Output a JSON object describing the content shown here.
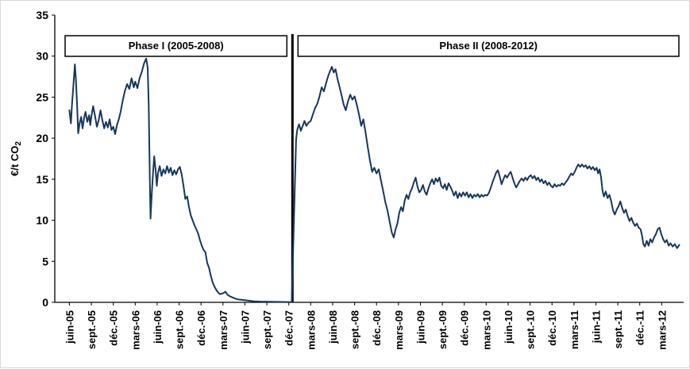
{
  "chart_data": {
    "type": "line",
    "title": "",
    "ylabel_main": "€/t CO",
    "ylabel_sub": "2",
    "ylim": [
      0,
      35
    ],
    "yticks": [
      0,
      5,
      10,
      15,
      20,
      25,
      30,
      35
    ],
    "xlim": [
      -2,
      84
    ],
    "xtick_start_month": 0,
    "xtick_step_months": 3,
    "xtick_labels": [
      "juin-05",
      "sept.-05",
      "déc.-05",
      "mars-06",
      "juin-06",
      "sept.-06",
      "déc.-06",
      "mars-07",
      "juin-07",
      "sept.-07",
      "déc.-07",
      "mars-08",
      "juin-08",
      "sept.-08",
      "déc.-08",
      "mars-09",
      "juin-09",
      "sept.-09",
      "déc.-09",
      "mars-10",
      "juin-10",
      "sept.-10",
      "déc.-10",
      "mars-11",
      "juin-11",
      "sept.-11",
      "déc.-11",
      "mars-12"
    ],
    "grid": false,
    "legend": "none",
    "phase_divider_month": 30.5,
    "annotations": [
      {
        "label": "Phase I (2005-2008)"
      },
      {
        "label": "Phase II (2008-2012)"
      }
    ],
    "series": [
      {
        "name": "",
        "color": "#17375e",
        "points": [
          [
            0.0,
            23.4
          ],
          [
            0.2,
            21.8
          ],
          [
            0.35,
            24.0
          ],
          [
            0.55,
            26.5
          ],
          [
            0.75,
            29.0
          ],
          [
            0.9,
            27.0
          ],
          [
            1.05,
            24.0
          ],
          [
            1.2,
            20.6
          ],
          [
            1.4,
            21.8
          ],
          [
            1.6,
            22.6
          ],
          [
            1.8,
            21.2
          ],
          [
            2.0,
            22.4
          ],
          [
            2.2,
            23.2
          ],
          [
            2.45,
            22.0
          ],
          [
            2.7,
            22.8
          ],
          [
            2.85,
            21.6
          ],
          [
            3.0,
            22.6
          ],
          [
            3.25,
            23.9
          ],
          [
            3.5,
            22.7
          ],
          [
            3.75,
            21.4
          ],
          [
            4.0,
            22.2
          ],
          [
            4.25,
            23.4
          ],
          [
            4.5,
            22.2
          ],
          [
            4.75,
            21.2
          ],
          [
            5.0,
            22.0
          ],
          [
            5.25,
            21.3
          ],
          [
            5.5,
            22.3
          ],
          [
            5.75,
            21.0
          ],
          [
            6.0,
            21.4
          ],
          [
            6.25,
            20.5
          ],
          [
            6.5,
            21.6
          ],
          [
            6.75,
            22.3
          ],
          [
            7.0,
            23.2
          ],
          [
            7.3,
            24.6
          ],
          [
            7.6,
            25.8
          ],
          [
            7.9,
            26.6
          ],
          [
            8.2,
            26.0
          ],
          [
            8.5,
            27.3
          ],
          [
            8.8,
            26.2
          ],
          [
            9.0,
            26.9
          ],
          [
            9.3,
            26.1
          ],
          [
            9.6,
            27.3
          ],
          [
            9.9,
            28.1
          ],
          [
            10.2,
            29.1
          ],
          [
            10.5,
            29.7
          ],
          [
            10.7,
            28.6
          ],
          [
            10.85,
            24.0
          ],
          [
            11.0,
            15.0
          ],
          [
            11.1,
            10.2
          ],
          [
            11.25,
            13.0
          ],
          [
            11.45,
            16.0
          ],
          [
            11.6,
            17.8
          ],
          [
            11.8,
            16.0
          ],
          [
            11.95,
            14.2
          ],
          [
            12.1,
            15.7
          ],
          [
            12.35,
            16.6
          ],
          [
            12.6,
            15.4
          ],
          [
            12.85,
            16.2
          ],
          [
            13.1,
            15.7
          ],
          [
            13.35,
            16.6
          ],
          [
            13.6,
            15.8
          ],
          [
            13.85,
            16.4
          ],
          [
            14.1,
            15.5
          ],
          [
            14.35,
            16.1
          ],
          [
            14.6,
            15.6
          ],
          [
            14.85,
            16.2
          ],
          [
            15.1,
            16.5
          ],
          [
            15.35,
            15.6
          ],
          [
            15.6,
            14.2
          ],
          [
            15.85,
            12.6
          ],
          [
            16.1,
            12.9
          ],
          [
            16.35,
            11.6
          ],
          [
            16.6,
            10.6
          ],
          [
            16.85,
            10.0
          ],
          [
            17.1,
            9.4
          ],
          [
            17.35,
            8.9
          ],
          [
            17.6,
            8.4
          ],
          [
            17.85,
            7.6
          ],
          [
            18.1,
            6.9
          ],
          [
            18.35,
            6.4
          ],
          [
            18.6,
            6.1
          ],
          [
            18.85,
            4.8
          ],
          [
            19.1,
            4.2
          ],
          [
            19.35,
            3.2
          ],
          [
            19.6,
            2.4
          ],
          [
            19.85,
            1.9
          ],
          [
            20.1,
            1.5
          ],
          [
            20.35,
            1.2
          ],
          [
            20.6,
            1.0
          ],
          [
            20.85,
            1.05
          ],
          [
            21.1,
            1.15
          ],
          [
            21.35,
            1.3
          ],
          [
            21.6,
            0.95
          ],
          [
            21.9,
            0.75
          ],
          [
            22.3,
            0.6
          ],
          [
            22.7,
            0.45
          ],
          [
            23.1,
            0.35
          ],
          [
            23.6,
            0.3
          ],
          [
            24.1,
            0.25
          ],
          [
            24.7,
            0.18
          ],
          [
            25.3,
            0.13
          ],
          [
            26.0,
            0.1
          ],
          [
            26.7,
            0.09
          ],
          [
            27.4,
            0.07
          ],
          [
            28.2,
            0.06
          ],
          [
            29.0,
            0.05
          ],
          [
            29.8,
            0.04
          ],
          [
            30.4,
            0.03
          ],
          [
            31.0,
            19.8
          ],
          [
            31.15,
            21.0
          ],
          [
            31.4,
            21.7
          ],
          [
            31.65,
            20.9
          ],
          [
            31.9,
            21.5
          ],
          [
            32.15,
            22.1
          ],
          [
            32.4,
            21.5
          ],
          [
            32.7,
            21.9
          ],
          [
            33.0,
            22.1
          ],
          [
            33.3,
            22.9
          ],
          [
            33.6,
            23.7
          ],
          [
            33.9,
            24.2
          ],
          [
            34.2,
            25.1
          ],
          [
            34.5,
            26.2
          ],
          [
            34.8,
            25.7
          ],
          [
            35.1,
            26.7
          ],
          [
            35.4,
            27.6
          ],
          [
            35.7,
            28.3
          ],
          [
            35.9,
            28.7
          ],
          [
            36.15,
            28.0
          ],
          [
            36.4,
            28.4
          ],
          [
            36.65,
            27.3
          ],
          [
            36.9,
            26.4
          ],
          [
            37.2,
            25.3
          ],
          [
            37.5,
            24.1
          ],
          [
            37.8,
            23.4
          ],
          [
            38.1,
            24.5
          ],
          [
            38.4,
            25.3
          ],
          [
            38.7,
            24.7
          ],
          [
            39.0,
            25.1
          ],
          [
            39.3,
            24.1
          ],
          [
            39.6,
            22.9
          ],
          [
            39.9,
            21.5
          ],
          [
            40.2,
            22.3
          ],
          [
            40.5,
            20.7
          ],
          [
            40.8,
            18.9
          ],
          [
            41.1,
            17.3
          ],
          [
            41.4,
            15.9
          ],
          [
            41.7,
            16.4
          ],
          [
            42.0,
            15.7
          ],
          [
            42.3,
            16.2
          ],
          [
            42.6,
            14.9
          ],
          [
            42.9,
            13.6
          ],
          [
            43.2,
            12.2
          ],
          [
            43.5,
            11.2
          ],
          [
            43.8,
            9.8
          ],
          [
            44.1,
            8.5
          ],
          [
            44.35,
            7.9
          ],
          [
            44.6,
            8.9
          ],
          [
            44.85,
            9.6
          ],
          [
            45.1,
            10.9
          ],
          [
            45.35,
            11.6
          ],
          [
            45.6,
            11.1
          ],
          [
            45.85,
            12.4
          ],
          [
            46.1,
            13.1
          ],
          [
            46.35,
            12.6
          ],
          [
            46.6,
            13.4
          ],
          [
            46.85,
            13.9
          ],
          [
            47.1,
            14.6
          ],
          [
            47.35,
            15.2
          ],
          [
            47.6,
            14.1
          ],
          [
            47.85,
            13.4
          ],
          [
            48.1,
            13.7
          ],
          [
            48.35,
            14.3
          ],
          [
            48.6,
            13.5
          ],
          [
            48.85,
            13.1
          ],
          [
            49.1,
            13.9
          ],
          [
            49.35,
            14.5
          ],
          [
            49.6,
            15.0
          ],
          [
            49.85,
            14.4
          ],
          [
            50.1,
            15.1
          ],
          [
            50.35,
            14.7
          ],
          [
            50.6,
            15.2
          ],
          [
            50.85,
            14.2
          ],
          [
            51.1,
            13.9
          ],
          [
            51.35,
            14.4
          ],
          [
            51.6,
            13.7
          ],
          [
            51.85,
            14.5
          ],
          [
            52.1,
            14.1
          ],
          [
            52.35,
            13.6
          ],
          [
            52.6,
            13.0
          ],
          [
            52.85,
            13.5
          ],
          [
            53.1,
            12.7
          ],
          [
            53.35,
            13.3
          ],
          [
            53.6,
            12.9
          ],
          [
            53.85,
            13.4
          ],
          [
            54.1,
            13.0
          ],
          [
            54.35,
            13.4
          ],
          [
            54.6,
            12.8
          ],
          [
            54.85,
            13.2
          ],
          [
            55.1,
            12.7
          ],
          [
            55.35,
            13.1
          ],
          [
            55.6,
            12.9
          ],
          [
            55.85,
            13.2
          ],
          [
            56.1,
            12.8
          ],
          [
            56.35,
            13.1
          ],
          [
            56.6,
            12.9
          ],
          [
            56.85,
            13.1
          ],
          [
            57.1,
            13.0
          ],
          [
            57.35,
            13.3
          ],
          [
            57.6,
            13.9
          ],
          [
            57.85,
            14.6
          ],
          [
            58.1,
            15.2
          ],
          [
            58.35,
            15.8
          ],
          [
            58.6,
            16.1
          ],
          [
            58.85,
            15.3
          ],
          [
            59.1,
            14.4
          ],
          [
            59.35,
            15.0
          ],
          [
            59.6,
            15.5
          ],
          [
            59.85,
            15.2
          ],
          [
            60.1,
            15.6
          ],
          [
            60.35,
            15.9
          ],
          [
            60.6,
            15.2
          ],
          [
            60.85,
            14.5
          ],
          [
            61.1,
            14.0
          ],
          [
            61.35,
            14.4
          ],
          [
            61.6,
            14.8
          ],
          [
            61.85,
            15.1
          ],
          [
            62.1,
            14.8
          ],
          [
            62.35,
            15.2
          ],
          [
            62.6,
            14.9
          ],
          [
            62.85,
            15.3
          ],
          [
            63.1,
            15.5
          ],
          [
            63.35,
            15.1
          ],
          [
            63.6,
            15.4
          ],
          [
            63.85,
            14.9
          ],
          [
            64.1,
            15.2
          ],
          [
            64.35,
            14.7
          ],
          [
            64.6,
            15.0
          ],
          [
            64.85,
            14.5
          ],
          [
            65.1,
            14.8
          ],
          [
            65.35,
            14.3
          ],
          [
            65.6,
            14.6
          ],
          [
            65.85,
            14.2
          ],
          [
            66.1,
            14.0
          ],
          [
            66.35,
            14.4
          ],
          [
            66.6,
            14.1
          ],
          [
            66.85,
            14.3
          ],
          [
            67.1,
            14.2
          ],
          [
            67.35,
            14.5
          ],
          [
            67.6,
            14.3
          ],
          [
            67.85,
            14.6
          ],
          [
            68.1,
            14.9
          ],
          [
            68.35,
            15.3
          ],
          [
            68.6,
            15.7
          ],
          [
            68.85,
            15.5
          ],
          [
            69.1,
            15.9
          ],
          [
            69.35,
            16.4
          ],
          [
            69.6,
            16.8
          ],
          [
            69.85,
            16.5
          ],
          [
            70.1,
            16.8
          ],
          [
            70.35,
            16.5
          ],
          [
            70.6,
            16.7
          ],
          [
            70.85,
            16.3
          ],
          [
            71.1,
            16.6
          ],
          [
            71.35,
            16.2
          ],
          [
            71.6,
            16.5
          ],
          [
            71.85,
            16.1
          ],
          [
            72.1,
            16.4
          ],
          [
            72.3,
            15.7
          ],
          [
            72.5,
            16.2
          ],
          [
            72.7,
            15.3
          ],
          [
            72.9,
            13.6
          ],
          [
            73.1,
            12.9
          ],
          [
            73.35,
            13.5
          ],
          [
            73.6,
            12.7
          ],
          [
            73.85,
            13.1
          ],
          [
            74.1,
            12.3
          ],
          [
            74.35,
            11.2
          ],
          [
            74.6,
            10.7
          ],
          [
            74.85,
            11.3
          ],
          [
            75.1,
            11.7
          ],
          [
            75.35,
            12.3
          ],
          [
            75.6,
            11.5
          ],
          [
            75.85,
            10.9
          ],
          [
            76.1,
            11.3
          ],
          [
            76.35,
            10.5
          ],
          [
            76.6,
            9.9
          ],
          [
            76.85,
            10.3
          ],
          [
            77.1,
            9.7
          ],
          [
            77.35,
            9.3
          ],
          [
            77.6,
            9.6
          ],
          [
            77.85,
            9.1
          ],
          [
            78.1,
            8.9
          ],
          [
            78.3,
            8.2
          ],
          [
            78.5,
            7.1
          ],
          [
            78.7,
            6.8
          ],
          [
            78.95,
            7.5
          ],
          [
            79.2,
            6.9
          ],
          [
            79.45,
            7.7
          ],
          [
            79.7,
            7.3
          ],
          [
            79.95,
            7.9
          ],
          [
            80.2,
            8.3
          ],
          [
            80.45,
            8.9
          ],
          [
            80.7,
            9.1
          ],
          [
            80.95,
            8.3
          ],
          [
            81.2,
            7.7
          ],
          [
            81.45,
            7.3
          ],
          [
            81.7,
            7.6
          ],
          [
            81.95,
            6.9
          ],
          [
            82.2,
            7.2
          ],
          [
            82.5,
            6.8
          ],
          [
            82.8,
            7.1
          ],
          [
            83.1,
            6.6
          ],
          [
            83.4,
            7.0
          ]
        ]
      }
    ]
  }
}
